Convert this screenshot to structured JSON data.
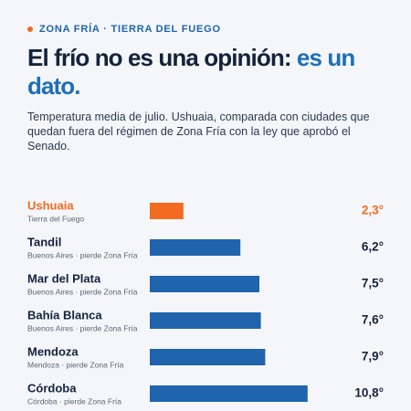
{
  "chart_data": {
    "type": "bar",
    "kicker": "ZONA FRÍA · TIERRA DEL FUEGO",
    "title": "El frío no es una opinión:",
    "title_highlight": "es un dato.",
    "subtitle": "Temperatura media de julio. Ushuaia, comparada con ciudades que quedan fuera del régimen de Zona Fría con la ley que aprobó el Senado.",
    "categories": [
      "Ushuaia",
      "Tandil",
      "Mar del Plata",
      "Bahía Blanca",
      "Mendoza",
      "Córdoba"
    ],
    "sublabels": [
      "Tierra del Fuego",
      "Buenos Aires · pierde Zona Fría",
      "Buenos Aires · pierde Zona Fría",
      "Buenos Aires · pierde Zona Fría",
      "Mendoza · pierde Zona Fría",
      "Córdoba · pierde Zona Fría"
    ],
    "values": [
      2.3,
      6.2,
      7.5,
      7.6,
      7.9,
      10.8
    ],
    "value_labels": [
      "2,3°",
      "6,2°",
      "7,5°",
      "7,6°",
      "7,9°",
      "10,8°"
    ],
    "colors": [
      "#f26b21",
      "#1f64ad",
      "#1f64ad",
      "#1f64ad",
      "#1f64ad",
      "#1f64ad"
    ]
  }
}
